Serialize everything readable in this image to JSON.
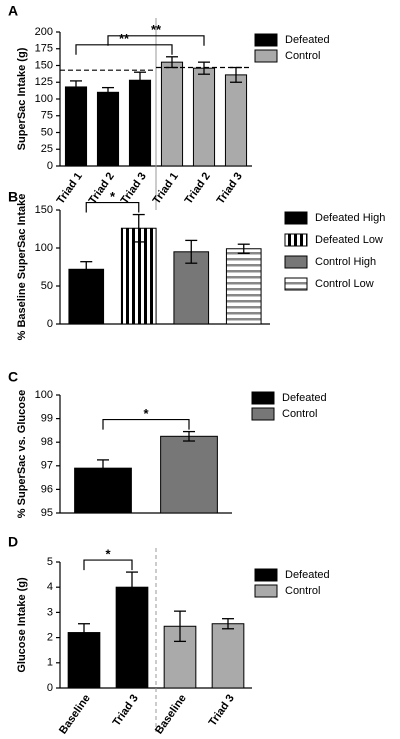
{
  "chart_data": [
    {
      "type": "bar",
      "panel_label": "A",
      "ylabel": "SuperSac Intake (g)",
      "categories": [
        "Triad 1",
        "Triad 2",
        "Triad 3",
        "Triad 1",
        "Triad 2",
        "Triad 3"
      ],
      "series": [
        {
          "name": "Defeated",
          "color": "#000000",
          "values": [
            118,
            110,
            128,
            null,
            null,
            null
          ],
          "errors": [
            9,
            7,
            12,
            null,
            null,
            null
          ]
        },
        {
          "name": "Control",
          "color": "#aaaaaa",
          "values": [
            null,
            null,
            null,
            155,
            146,
            136
          ],
          "errors": [
            null,
            null,
            null,
            8,
            9,
            11
          ]
        }
      ],
      "ylim": [
        0,
        200
      ],
      "yticks": [
        0,
        25,
        50,
        75,
        100,
        125,
        150,
        175,
        200
      ],
      "reference_lines": [
        143,
        147
      ],
      "divider": "solid",
      "brackets": [
        {
          "from": 0,
          "to": 3,
          "label": "**"
        },
        {
          "from": 1,
          "to": 4,
          "label": "**"
        }
      ]
    },
    {
      "type": "bar",
      "panel_label": "B",
      "ylabel": "% Baseline SuperSac Intake",
      "categories": [
        null,
        null,
        null,
        null
      ],
      "series": [
        {
          "name": "Defeated High",
          "color": "#000000",
          "values": [
            72,
            null,
            null,
            null
          ],
          "errors": [
            10,
            null,
            null,
            null
          ]
        },
        {
          "name": "Defeated Low",
          "color": "#000000",
          "pattern": "vertical",
          "values": [
            null,
            126,
            null,
            null
          ],
          "errors": [
            null,
            18,
            null,
            null
          ]
        },
        {
          "name": "Control High",
          "color": "#777777",
          "values": [
            null,
            null,
            95,
            null
          ],
          "errors": [
            null,
            null,
            15,
            null
          ]
        },
        {
          "name": "Control Low",
          "color": "#888888",
          "pattern": "horizontal",
          "values": [
            null,
            null,
            null,
            99
          ],
          "errors": [
            null,
            null,
            null,
            6
          ]
        }
      ],
      "ylim": [
        0,
        150
      ],
      "yticks": [
        0,
        50,
        100,
        150
      ],
      "brackets": [
        {
          "from": 0,
          "to": 1,
          "label": "*"
        }
      ]
    },
    {
      "type": "bar",
      "panel_label": "C",
      "ylabel": "% SuperSac vs. Glucose",
      "categories": [
        null,
        null
      ],
      "series": [
        {
          "name": "Defeated",
          "color": "#000000",
          "values": [
            96.9,
            null
          ],
          "errors": [
            0.35,
            null
          ]
        },
        {
          "name": "Control",
          "color": "#777777",
          "values": [
            null,
            98.25
          ],
          "errors": [
            null,
            0.2
          ]
        }
      ],
      "ylim": [
        95,
        100
      ],
      "yticks": [
        95,
        96,
        97,
        98,
        99,
        100
      ],
      "brackets": [
        {
          "from": 0,
          "to": 1,
          "label": "*"
        }
      ]
    },
    {
      "type": "bar",
      "panel_label": "D",
      "ylabel": "Glucose Intake (g)",
      "categories": [
        "Baseline",
        "Triad 3",
        "Baseline",
        "Triad 3"
      ],
      "series": [
        {
          "name": "Defeated",
          "color": "#000000",
          "values": [
            2.2,
            4.0,
            null,
            null
          ],
          "errors": [
            0.35,
            0.6,
            null,
            null
          ]
        },
        {
          "name": "Control",
          "color": "#aaaaaa",
          "values": [
            null,
            null,
            2.45,
            2.55
          ],
          "errors": [
            null,
            null,
            0.6,
            0.2
          ]
        }
      ],
      "ylim": [
        0,
        5
      ],
      "yticks": [
        0,
        1,
        2,
        3,
        4,
        5
      ],
      "divider": "dashed",
      "brackets": [
        {
          "from": 0,
          "to": 1,
          "label": "*"
        }
      ]
    }
  ]
}
